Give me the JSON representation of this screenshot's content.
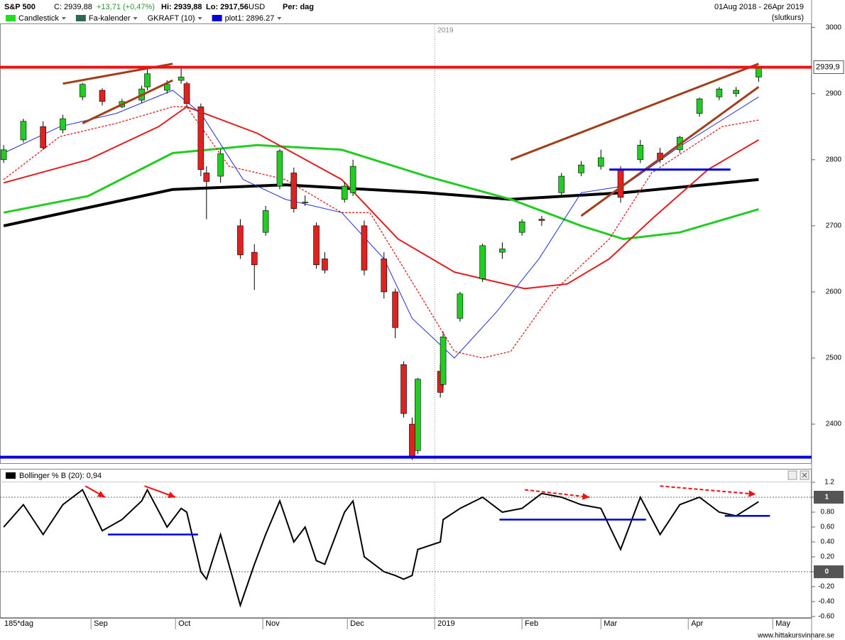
{
  "header": {
    "symbol": "S&P 500",
    "close": "C: 2939,88",
    "change": "+13,71 (+0,47%)",
    "high": "Hi: 2939,88",
    "low": "Lo: 2917,56",
    "currency": "USD",
    "period": "Per: dag",
    "date_range": "01Aug 2018 - 26Apr 2019",
    "price_type": "(slutkurs)"
  },
  "footer": {
    "bars": "185*dag",
    "site": "www.hittakursvinnare.se"
  },
  "chart_data": [
    {
      "type": "candlestick",
      "legend": [
        {
          "name": "Candlestick",
          "color": "#22dd22"
        },
        {
          "name": "Fa-kalender",
          "color": "#2a6a55"
        },
        {
          "name": "GKRAFT (10)"
        },
        {
          "name": "plot1: 2896.27",
          "color": "#0000dd"
        }
      ],
      "up_color": "#22cc22",
      "down_color": "#dd2222",
      "x": [
        0,
        7,
        14,
        21,
        28,
        35,
        42,
        49,
        51,
        58,
        63,
        65,
        70,
        72,
        77,
        84,
        89,
        93,
        98,
        103,
        107,
        111,
        114,
        121,
        124,
        128,
        135,
        139,
        142,
        145,
        147,
        155,
        156,
        162,
        170,
        177,
        184,
        191,
        198,
        205,
        212,
        219,
        226,
        233,
        240,
        247,
        254,
        260,
        268
      ],
      "open": [
        2800,
        2830,
        2850,
        2845,
        2895,
        2905,
        2880,
        2890,
        2910,
        2905,
        2920,
        2915,
        2880,
        2780,
        2775,
        2700,
        2660,
        2690,
        2760,
        2780,
        2735,
        2700,
        2650,
        2740,
        2750,
        2700,
        2650,
        2600,
        2490,
        2400,
        2360,
        2480,
        2460,
        2560,
        2620,
        2660,
        2690,
        2710,
        2750,
        2780,
        2790,
        2785,
        2800,
        2810,
        2815,
        2870,
        2895,
        2900,
        2925
      ],
      "high": [
        2822,
        2862,
        2858,
        2868,
        2916,
        2908,
        2892,
        2912,
        2941,
        2920,
        2940,
        2918,
        2885,
        2790,
        2816,
        2710,
        2672,
        2730,
        2816,
        2788,
        2746,
        2705,
        2660,
        2766,
        2800,
        2708,
        2660,
        2605,
        2495,
        2410,
        2470,
        2490,
        2540,
        2600,
        2673,
        2675,
        2710,
        2715,
        2780,
        2798,
        2815,
        2790,
        2830,
        2818,
        2836,
        2894,
        2910,
        2910,
        2940
      ],
      "low": [
        2795,
        2826,
        2815,
        2840,
        2890,
        2882,
        2878,
        2886,
        2905,
        2900,
        2915,
        2880,
        2775,
        2710,
        2765,
        2650,
        2603,
        2685,
        2755,
        2720,
        2730,
        2635,
        2628,
        2735,
        2745,
        2625,
        2590,
        2530,
        2410,
        2346,
        2355,
        2440,
        2455,
        2555,
        2615,
        2650,
        2685,
        2700,
        2745,
        2775,
        2785,
        2735,
        2795,
        2795,
        2810,
        2865,
        2890,
        2895,
        2918
      ],
      "close": [
        2815,
        2858,
        2818,
        2862,
        2914,
        2888,
        2888,
        2907,
        2930,
        2914,
        2925,
        2885,
        2785,
        2767,
        2809,
        2656,
        2641,
        2723,
        2813,
        2726,
        2736,
        2641,
        2633,
        2760,
        2790,
        2633,
        2600,
        2546,
        2416,
        2351,
        2468,
        2448,
        2532,
        2597,
        2670,
        2665,
        2706,
        2708,
        2775,
        2792,
        2803,
        2743,
        2822,
        2800,
        2834,
        2892,
        2907,
        2905,
        2940
      ],
      "lines": [
        {
          "color": "#000000",
          "width": 4,
          "x": [
            0,
            60,
            100,
            150,
            180,
            220,
            268
          ],
          "values": [
            2700,
            2755,
            2762,
            2750,
            2740,
            2750,
            2770
          ]
        },
        {
          "color": "#22cc22",
          "width": 3,
          "x": [
            0,
            30,
            60,
            90,
            120,
            150,
            180,
            205,
            220,
            240,
            268
          ],
          "values": [
            2720,
            2745,
            2810,
            2822,
            2815,
            2775,
            2740,
            2700,
            2680,
            2690,
            2725
          ]
        },
        {
          "color": "#e02020",
          "width": 2,
          "x": [
            0,
            30,
            55,
            65,
            90,
            120,
            140,
            160,
            185,
            200,
            215,
            230,
            250,
            268
          ],
          "values": [
            2765,
            2800,
            2850,
            2880,
            2840,
            2770,
            2680,
            2630,
            2605,
            2612,
            2650,
            2710,
            2785,
            2830
          ]
        },
        {
          "color": "#e02020",
          "width": 1.3,
          "dashed": true,
          "x": [
            0,
            20,
            40,
            60,
            65,
            80,
            100,
            120,
            130,
            150,
            160,
            170,
            180,
            195,
            205,
            215,
            230,
            255,
            268
          ],
          "values": [
            2770,
            2835,
            2855,
            2880,
            2880,
            2790,
            2770,
            2720,
            2720,
            2580,
            2510,
            2500,
            2510,
            2600,
            2640,
            2680,
            2780,
            2850,
            2860
          ]
        },
        {
          "color": "#2030d0",
          "width": 1,
          "x": [
            0,
            20,
            40,
            60,
            70,
            85,
            100,
            120,
            135,
            145,
            160,
            175,
            190,
            205,
            220,
            240,
            268
          ],
          "values": [
            2810,
            2850,
            2870,
            2905,
            2870,
            2770,
            2740,
            2720,
            2650,
            2560,
            2500,
            2570,
            2650,
            2750,
            2760,
            2820,
            2895
          ]
        }
      ],
      "trend_lines": [
        {
          "color": "#a0401a",
          "x": [
            21,
            60
          ],
          "values": [
            2915,
            2945
          ]
        },
        {
          "color": "#a0401a",
          "x": [
            28,
            60
          ],
          "values": [
            2855,
            2920
          ]
        },
        {
          "color": "#a0401a",
          "x": [
            180,
            268
          ],
          "values": [
            2800,
            2945
          ]
        },
        {
          "color": "#a0401a",
          "x": [
            205,
            268
          ],
          "values": [
            2715,
            2910
          ]
        },
        {
          "color": "#0000dd",
          "x": [
            215,
            258
          ],
          "values": [
            2785,
            2785
          ]
        }
      ],
      "resistance": {
        "value": 2939.9,
        "label": "2939,9",
        "color": "#ee1111"
      },
      "support": {
        "value": 2350,
        "color": "#0000dd"
      },
      "year_marker": {
        "value": 153,
        "label": "2019"
      },
      "xlim": [
        -1.3,
        286.8
      ],
      "ylim": [
        2341,
        3005
      ],
      "yticks": [
        2400,
        2500,
        2600,
        2700,
        2800,
        2900,
        3000
      ]
    },
    {
      "type": "line",
      "title": "Bollinger % B (20): 0,94",
      "color": "#000000",
      "x": [
        0,
        7,
        14,
        21,
        28,
        35,
        42,
        49,
        51,
        58,
        63,
        65,
        70,
        72,
        77,
        84,
        89,
        93,
        98,
        103,
        107,
        111,
        114,
        121,
        124,
        128,
        135,
        139,
        142,
        145,
        147,
        155,
        156,
        162,
        170,
        177,
        184,
        191,
        198,
        205,
        212,
        219,
        226,
        233,
        240,
        247,
        254,
        260,
        268
      ],
      "values": [
        0.6,
        0.9,
        0.5,
        0.9,
        1.1,
        0.55,
        0.7,
        0.95,
        1.1,
        0.6,
        0.85,
        0.8,
        0.0,
        -0.1,
        0.5,
        -0.45,
        0.1,
        0.5,
        0.95,
        0.4,
        0.6,
        0.15,
        0.1,
        0.8,
        0.95,
        0.2,
        0.0,
        -0.05,
        -0.1,
        -0.05,
        0.3,
        0.4,
        0.7,
        0.85,
        1.0,
        0.8,
        0.85,
        1.05,
        1.0,
        0.9,
        0.85,
        0.3,
        1.0,
        0.5,
        0.9,
        1.0,
        0.8,
        0.75,
        0.94
      ],
      "trend_lines": [
        {
          "color": "#0000dd",
          "x": [
            37,
            69
          ],
          "values": [
            0.5,
            0.5
          ]
        },
        {
          "color": "#0000dd",
          "x": [
            176,
            228
          ],
          "values": [
            0.7,
            0.7
          ]
        },
        {
          "color": "#0000dd",
          "x": [
            256,
            272
          ],
          "values": [
            0.75,
            0.75
          ]
        }
      ],
      "arrows": [
        {
          "color": "#ee1111",
          "x": [
            29,
            36
          ],
          "values": [
            1.15,
            1.0
          ]
        },
        {
          "color": "#ee1111",
          "x": [
            50,
            61
          ],
          "values": [
            1.15,
            1.0
          ]
        },
        {
          "color": "#ee1111",
          "x": [
            185,
            208
          ],
          "values": [
            1.1,
            1.0
          ],
          "dashed": true
        },
        {
          "color": "#ee1111",
          "x": [
            233,
            267
          ],
          "values": [
            1.15,
            1.04
          ],
          "dashed": true
        }
      ],
      "reference_lines": [
        1,
        0
      ],
      "xlim": [
        -1.3,
        286.8
      ],
      "ylim": [
        -0.62,
        1.2
      ],
      "yticks": [
        1.2,
        1,
        {
          "value": 0.8,
          "label": "0.80"
        },
        {
          "value": 0.6,
          "label": "0.60"
        },
        {
          "value": 0.4,
          "label": "0.40"
        },
        {
          "value": 0.2,
          "label": "0.20"
        },
        0,
        {
          "value": -0.2,
          "label": "-0.20"
        },
        {
          "value": -0.4,
          "label": "-0.40"
        },
        {
          "value": -0.6,
          "label": "-0.60"
        }
      ],
      "xticks": [
        {
          "value": 31,
          "label": "Sep"
        },
        {
          "value": 61,
          "label": "Oct"
        },
        {
          "value": 92,
          "label": "Nov"
        },
        {
          "value": 122,
          "label": "Dec"
        },
        {
          "value": 153,
          "label": "2019"
        },
        {
          "value": 184,
          "label": "Feb"
        },
        {
          "value": 212,
          "label": "Mar"
        },
        {
          "value": 243,
          "label": "Apr"
        },
        {
          "value": 273,
          "label": "May"
        }
      ]
    }
  ]
}
